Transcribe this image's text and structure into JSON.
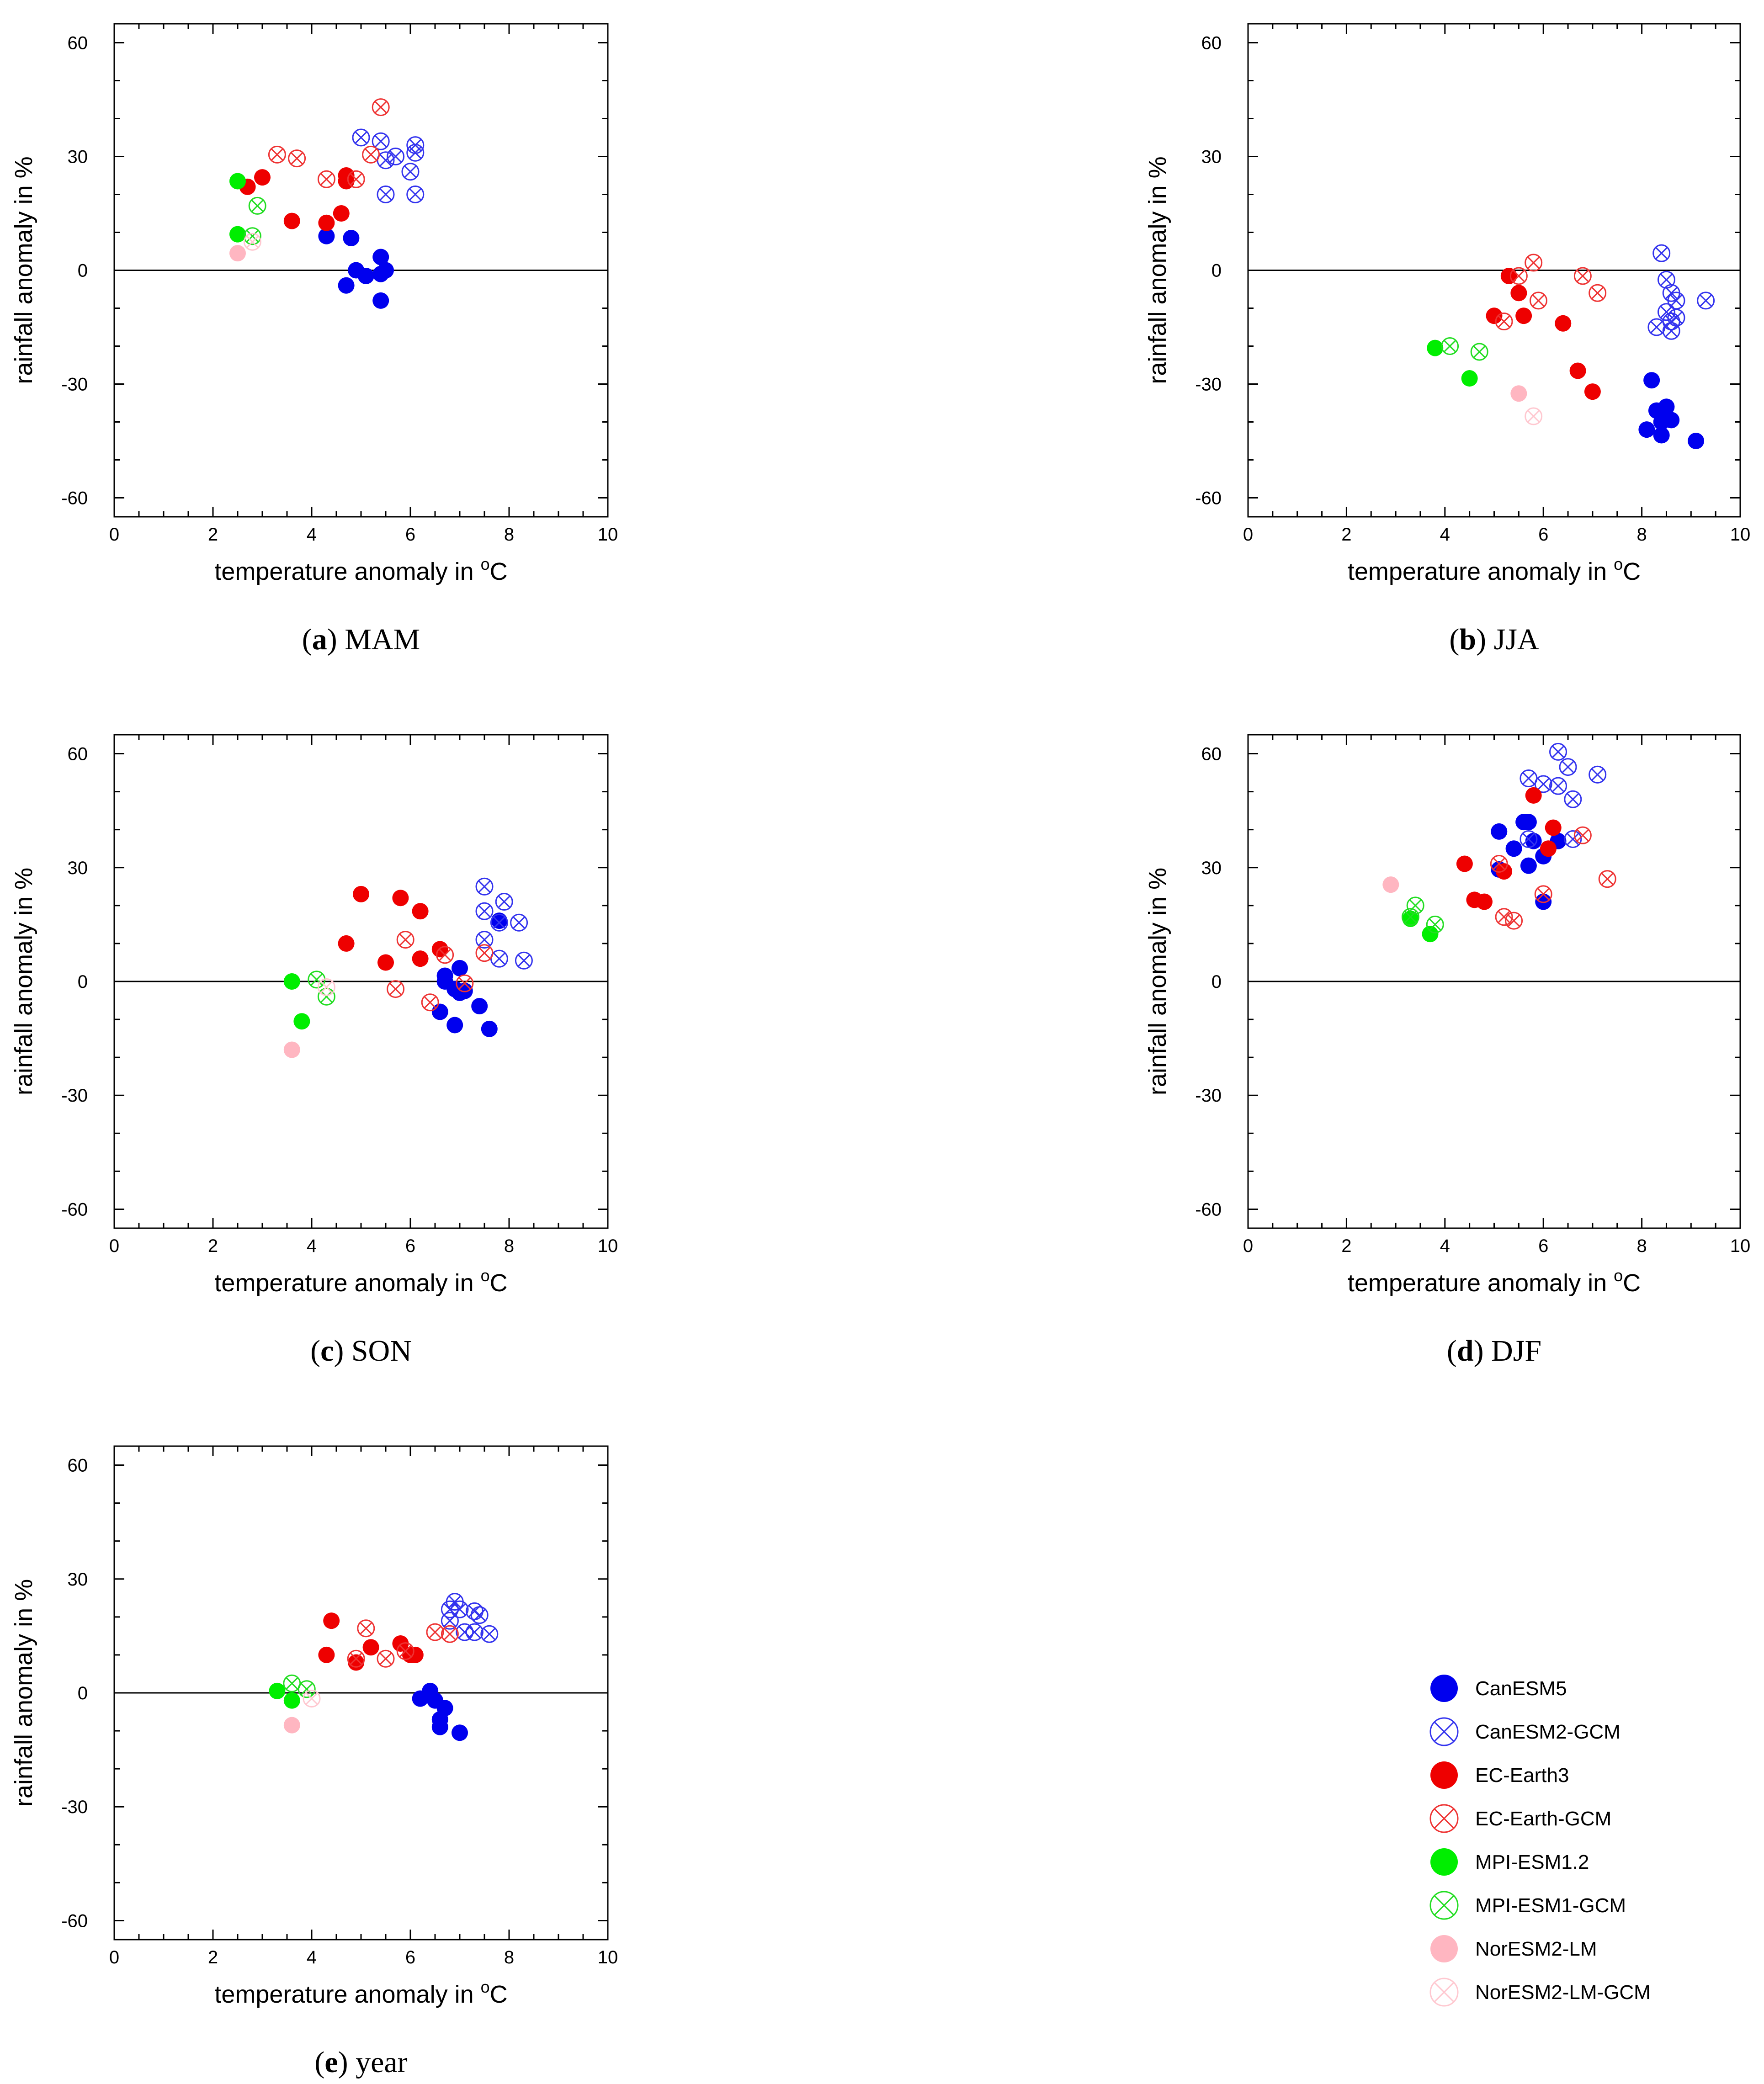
{
  "colors": {
    "CanESM5": "#0000ee",
    "CanESM2-GCM": "#3333ee",
    "EC-Earth3": "#ee0000",
    "EC-Earth-GCM": "#ee3333",
    "MPI-ESM1.2": "#00ee00",
    "MPI-ESM1-GCM": "#22dd22",
    "NorESM2-LM": "#ffb6c1",
    "NorESM2-LM-GCM": "#ffc8d0"
  },
  "axes": {
    "xlabel_main": "temperature anomaly in ",
    "xlabel_sup": "o",
    "xlabel_unit": "C",
    "ylabel": "rainfall anomaly in %",
    "xlim": [
      0,
      10
    ],
    "ylim": [
      -65,
      65
    ],
    "xticks": [
      "0",
      "2",
      "4",
      "6",
      "8",
      "10"
    ],
    "yticks": [
      "60",
      "30",
      "0",
      "-30",
      "-60"
    ]
  },
  "legend": [
    {
      "label": "CanESM5",
      "series": "CanESM5",
      "marker": "filled"
    },
    {
      "label": "CanESM2-GCM",
      "series": "CanESM2-GCM",
      "marker": "crossed"
    },
    {
      "label": "EC-Earth3",
      "series": "EC-Earth3",
      "marker": "filled"
    },
    {
      "label": "EC-Earth-GCM",
      "series": "EC-Earth-GCM",
      "marker": "crossed"
    },
    {
      "label": "MPI-ESM1.2",
      "series": "MPI-ESM1.2",
      "marker": "filled"
    },
    {
      "label": "MPI-ESM1-GCM",
      "series": "MPI-ESM1-GCM",
      "marker": "crossed"
    },
    {
      "label": "NorESM2-LM",
      "series": "NorESM2-LM",
      "marker": "filled"
    },
    {
      "label": "NorESM2-LM-GCM",
      "series": "NorESM2-LM-GCM",
      "marker": "crossed"
    }
  ],
  "chart_data": [
    {
      "type": "scatter",
      "caption_letter": "a",
      "caption_text": "MAM",
      "series": [
        {
          "name": "CanESM5",
          "points": [
            [
              4.3,
              9
            ],
            [
              4.8,
              8.5
            ],
            [
              4.9,
              0
            ],
            [
              5.1,
              -1.5
            ],
            [
              4.7,
              -4
            ],
            [
              5.4,
              3.5
            ],
            [
              5.4,
              -1
            ],
            [
              5.5,
              0
            ],
            [
              5.4,
              -8
            ]
          ]
        },
        {
          "name": "CanESM2-GCM",
          "points": [
            [
              5.0,
              35
            ],
            [
              5.4,
              34
            ],
            [
              5.5,
              29
            ],
            [
              5.7,
              30
            ],
            [
              6.1,
              33
            ],
            [
              6.1,
              31
            ],
            [
              6.0,
              26
            ],
            [
              5.5,
              20
            ],
            [
              6.1,
              20
            ]
          ]
        },
        {
          "name": "EC-Earth3",
          "points": [
            [
              2.7,
              22
            ],
            [
              3.0,
              24.5
            ],
            [
              3.6,
              13
            ],
            [
              4.3,
              12.5
            ],
            [
              4.6,
              15
            ],
            [
              4.7,
              23.5
            ],
            [
              4.7,
              25
            ]
          ]
        },
        {
          "name": "EC-Earth-GCM",
          "points": [
            [
              3.3,
              30.5
            ],
            [
              3.7,
              29.5
            ],
            [
              4.3,
              24
            ],
            [
              4.9,
              24
            ],
            [
              5.2,
              30.5
            ],
            [
              5.4,
              43
            ]
          ]
        },
        {
          "name": "MPI-ESM1.2",
          "points": [
            [
              2.5,
              23.5
            ],
            [
              2.5,
              9.5
            ]
          ]
        },
        {
          "name": "MPI-ESM1-GCM",
          "points": [
            [
              2.9,
              17
            ],
            [
              2.8,
              9
            ]
          ]
        },
        {
          "name": "NorESM2-LM",
          "points": [
            [
              2.5,
              4.5
            ]
          ]
        },
        {
          "name": "NorESM2-LM-GCM",
          "points": [
            [
              2.8,
              7.5
            ]
          ]
        }
      ]
    },
    {
      "type": "scatter",
      "caption_letter": "b",
      "caption_text": "JJA",
      "series": [
        {
          "name": "CanESM5",
          "points": [
            [
              8.2,
              -29
            ],
            [
              8.1,
              -42
            ],
            [
              8.3,
              -37
            ],
            [
              8.4,
              -40
            ],
            [
              8.4,
              -43.5
            ],
            [
              8.5,
              -36
            ],
            [
              8.6,
              -39.5
            ],
            [
              9.1,
              -45
            ]
          ]
        },
        {
          "name": "CanESM2-GCM",
          "points": [
            [
              8.4,
              4.5
            ],
            [
              8.5,
              -2.5
            ],
            [
              8.6,
              -6
            ],
            [
              8.7,
              -8
            ],
            [
              8.5,
              -11
            ],
            [
              8.7,
              -12.5
            ],
            [
              8.6,
              -13.5
            ],
            [
              8.3,
              -15
            ],
            [
              8.6,
              -16
            ],
            [
              9.3,
              -8
            ]
          ]
        },
        {
          "name": "EC-Earth3",
          "points": [
            [
              5.3,
              -1.5
            ],
            [
              5.5,
              -6
            ],
            [
              5.0,
              -12
            ],
            [
              5.6,
              -12
            ],
            [
              6.4,
              -14
            ],
            [
              6.7,
              -26.5
            ],
            [
              7.0,
              -32
            ]
          ]
        },
        {
          "name": "EC-Earth-GCM",
          "points": [
            [
              5.8,
              2
            ],
            [
              5.5,
              -1.5
            ],
            [
              6.8,
              -1.5
            ],
            [
              7.1,
              -6
            ],
            [
              5.9,
              -8
            ],
            [
              5.2,
              -13.5
            ]
          ]
        },
        {
          "name": "MPI-ESM1.2",
          "points": [
            [
              3.8,
              -20.5
            ],
            [
              4.5,
              -28.5
            ]
          ]
        },
        {
          "name": "MPI-ESM1-GCM",
          "points": [
            [
              4.1,
              -20
            ],
            [
              4.7,
              -21.5
            ]
          ]
        },
        {
          "name": "NorESM2-LM",
          "points": [
            [
              5.5,
              -32.5
            ]
          ]
        },
        {
          "name": "NorESM2-LM-GCM",
          "points": [
            [
              5.8,
              -38.5
            ]
          ]
        }
      ]
    },
    {
      "type": "scatter",
      "caption_letter": "c",
      "caption_text": "SON",
      "series": [
        {
          "name": "CanESM5",
          "points": [
            [
              7.0,
              3.5
            ],
            [
              6.7,
              1.5
            ],
            [
              6.7,
              0
            ],
            [
              6.9,
              -2
            ],
            [
              7.0,
              -3
            ],
            [
              7.1,
              -2.5
            ],
            [
              6.6,
              -8
            ],
            [
              7.4,
              -6.5
            ],
            [
              6.9,
              -11.5
            ],
            [
              7.6,
              -12.5
            ],
            [
              7.8,
              16
            ]
          ]
        },
        {
          "name": "CanESM2-GCM",
          "points": [
            [
              7.5,
              25
            ],
            [
              7.5,
              18.5
            ],
            [
              7.9,
              21
            ],
            [
              7.8,
              15.5
            ],
            [
              8.2,
              15.5
            ],
            [
              7.5,
              11
            ],
            [
              7.8,
              6
            ],
            [
              8.3,
              5.5
            ]
          ]
        },
        {
          "name": "EC-Earth3",
          "points": [
            [
              5.0,
              23
            ],
            [
              5.8,
              22
            ],
            [
              6.2,
              18.5
            ],
            [
              4.7,
              10
            ],
            [
              5.5,
              5
            ],
            [
              6.2,
              6
            ],
            [
              6.6,
              8.5
            ]
          ]
        },
        {
          "name": "EC-Earth-GCM",
          "points": [
            [
              5.9,
              11
            ],
            [
              6.7,
              7
            ],
            [
              7.5,
              7.5
            ],
            [
              5.7,
              -2
            ],
            [
              6.4,
              -5.5
            ],
            [
              7.1,
              -0.5
            ]
          ]
        },
        {
          "name": "MPI-ESM1.2",
          "points": [
            [
              3.6,
              0
            ],
            [
              3.8,
              -10.5
            ]
          ]
        },
        {
          "name": "MPI-ESM1-GCM",
          "points": [
            [
              4.1,
              0.5
            ],
            [
              4.3,
              -4
            ]
          ]
        },
        {
          "name": "NorESM2-LM",
          "points": [
            [
              3.6,
              -18
            ]
          ]
        },
        {
          "name": "NorESM2-LM-GCM",
          "points": [
            [
              4.3,
              -1.5
            ]
          ]
        }
      ]
    },
    {
      "type": "scatter",
      "caption_letter": "d",
      "caption_text": "DJF",
      "series": [
        {
          "name": "CanESM5",
          "points": [
            [
              5.1,
              39.5
            ],
            [
              5.6,
              42
            ],
            [
              5.7,
              42
            ],
            [
              5.4,
              35
            ],
            [
              5.8,
              37
            ],
            [
              6.3,
              37
            ],
            [
              6.0,
              33
            ],
            [
              5.7,
              30.5
            ],
            [
              5.1,
              29.5
            ],
            [
              6.0,
              21
            ]
          ]
        },
        {
          "name": "CanESM2-GCM",
          "points": [
            [
              6.3,
              60.5
            ],
            [
              6.5,
              56.5
            ],
            [
              5.7,
              53.5
            ],
            [
              6.0,
              52
            ],
            [
              6.3,
              51.5
            ],
            [
              7.1,
              54.5
            ],
            [
              6.6,
              48
            ],
            [
              6.6,
              37.5
            ],
            [
              5.7,
              37.5
            ]
          ]
        },
        {
          "name": "EC-Earth3",
          "points": [
            [
              5.8,
              49
            ],
            [
              6.2,
              40.5
            ],
            [
              6.1,
              35
            ],
            [
              4.4,
              31
            ],
            [
              5.2,
              29
            ],
            [
              4.6,
              21.5
            ],
            [
              4.8,
              21
            ]
          ]
        },
        {
          "name": "EC-Earth-GCM",
          "points": [
            [
              6.8,
              38.5
            ],
            [
              5.1,
              31
            ],
            [
              6.0,
              23
            ],
            [
              7.3,
              27
            ],
            [
              5.2,
              17
            ],
            [
              5.4,
              16
            ]
          ]
        },
        {
          "name": "MPI-ESM1.2",
          "points": [
            [
              3.3,
              16.5
            ],
            [
              3.7,
              12.5
            ]
          ]
        },
        {
          "name": "MPI-ESM1-GCM",
          "points": [
            [
              3.4,
              20
            ],
            [
              3.8,
              15
            ],
            [
              3.3,
              17
            ]
          ]
        },
        {
          "name": "NorESM2-LM",
          "points": [
            [
              2.9,
              25.5
            ]
          ]
        },
        {
          "name": "NorESM2-LM-GCM",
          "points": []
        }
      ]
    },
    {
      "type": "scatter",
      "caption_letter": "e",
      "caption_text": "year",
      "series": [
        {
          "name": "CanESM5",
          "points": [
            [
              6.4,
              0.5
            ],
            [
              6.2,
              -1.5
            ],
            [
              6.5,
              -2
            ],
            [
              6.7,
              -4
            ],
            [
              6.6,
              -7
            ],
            [
              6.6,
              -9
            ],
            [
              7.0,
              -10.5
            ]
          ]
        },
        {
          "name": "CanESM2-GCM",
          "points": [
            [
              6.9,
              24
            ],
            [
              6.8,
              22
            ],
            [
              7.0,
              22
            ],
            [
              7.3,
              21.5
            ],
            [
              7.4,
              20.5
            ],
            [
              6.8,
              19
            ],
            [
              7.1,
              16
            ],
            [
              7.3,
              16
            ],
            [
              7.6,
              15.5
            ]
          ]
        },
        {
          "name": "EC-Earth3",
          "points": [
            [
              4.4,
              19
            ],
            [
              4.3,
              10
            ],
            [
              4.9,
              8
            ],
            [
              5.2,
              12
            ],
            [
              5.8,
              13
            ],
            [
              6.0,
              10
            ],
            [
              6.1,
              10
            ]
          ]
        },
        {
          "name": "EC-Earth-GCM",
          "points": [
            [
              5.1,
              17
            ],
            [
              6.5,
              16
            ],
            [
              6.8,
              15.5
            ],
            [
              4.9,
              9
            ],
            [
              5.5,
              9
            ],
            [
              5.9,
              11
            ]
          ]
        },
        {
          "name": "MPI-ESM1.2",
          "points": [
            [
              3.3,
              0.5
            ],
            [
              3.6,
              -2
            ]
          ]
        },
        {
          "name": "MPI-ESM1-GCM",
          "points": [
            [
              3.6,
              2.5
            ],
            [
              3.9,
              1
            ]
          ]
        },
        {
          "name": "NorESM2-LM",
          "points": [
            [
              3.6,
              -8.5
            ]
          ]
        },
        {
          "name": "NorESM2-LM-GCM",
          "points": [
            [
              4.0,
              -1.5
            ]
          ]
        }
      ]
    }
  ]
}
